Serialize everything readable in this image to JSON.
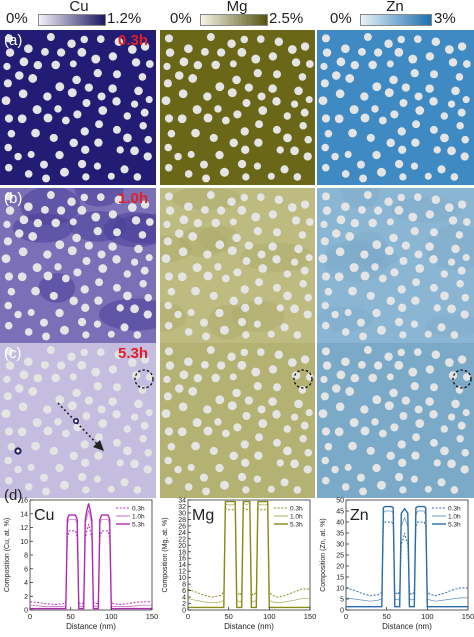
{
  "colorbars": [
    {
      "element": "Cu",
      "min_label": "0%",
      "max_label": "1.2%",
      "color_low": "#f4f2fb",
      "color_high": "#1c1760"
    },
    {
      "element": "Mg",
      "min_label": "0%",
      "max_label": "2.5%",
      "color_low": "#f6f5e6",
      "color_high": "#55530f"
    },
    {
      "element": "Zn",
      "min_label": "0%",
      "max_label": "3%",
      "color_low": "#e8f1f8",
      "color_high": "#1b6fae"
    }
  ],
  "panel_labels": [
    "(a)",
    "(b)",
    "(c)",
    "(d)"
  ],
  "time_labels": [
    "0.3h",
    "1.0h",
    "5.3h"
  ],
  "map_colors": {
    "cu": [
      "#221c74",
      "#7b6fb8",
      "#c4bde0"
    ],
    "mg": [
      "#6a6818",
      "#bdbb80",
      "#b4b272"
    ],
    "zn": [
      "#3f8ac2",
      "#8ab6d3",
      "#7ba9c8"
    ],
    "particle": "#e4e4e4"
  },
  "chart_data": [
    {
      "type": "line",
      "element_label": "Cu",
      "xlabel": "Distance (nm)",
      "ylabel": "Composition (Cu, at. %)",
      "xlim": [
        0,
        150
      ],
      "ylim": [
        0,
        16
      ],
      "xticks": [
        0,
        50,
        100,
        150
      ],
      "yticks": [
        0,
        2,
        4,
        6,
        8,
        10,
        12,
        14,
        16
      ],
      "color": "#b12ab4",
      "series": [
        {
          "name": "0.3h",
          "style": "dotted",
          "x": [
            0,
            10,
            20,
            30,
            40,
            44,
            46,
            48,
            56,
            58,
            60,
            64,
            66,
            68,
            70,
            72,
            74,
            76,
            78,
            80,
            84,
            86,
            88,
            96,
            98,
            100,
            104,
            110,
            120,
            130,
            140,
            150
          ],
          "y": [
            1.2,
            1.1,
            0.9,
            0.8,
            0.9,
            1.0,
            10.5,
            11.5,
            11.5,
            10.5,
            1.0,
            0.9,
            1.2,
            10.5,
            11.5,
            12.5,
            11.5,
            10.5,
            1.2,
            0.9,
            1.0,
            10.5,
            11.5,
            11.5,
            10.5,
            1.0,
            0.9,
            0.8,
            0.9,
            1.1,
            1.2,
            1.2
          ]
        },
        {
          "name": "1.0h",
          "style": "thin",
          "x": [
            0,
            10,
            20,
            30,
            40,
            44,
            46,
            48,
            56,
            58,
            60,
            64,
            66,
            68,
            70,
            72,
            74,
            76,
            78,
            80,
            84,
            86,
            88,
            96,
            98,
            100,
            104,
            110,
            120,
            130,
            140,
            150
          ],
          "y": [
            0.7,
            0.6,
            0.5,
            0.5,
            0.5,
            0.6,
            12.5,
            13.2,
            13.2,
            12.5,
            0.6,
            0.5,
            0.8,
            12.5,
            13.5,
            14.5,
            13.5,
            12.5,
            0.8,
            0.5,
            0.6,
            12.5,
            13.2,
            13.2,
            12.5,
            0.6,
            0.5,
            0.5,
            0.5,
            0.6,
            0.7,
            0.7
          ]
        },
        {
          "name": "5.3h",
          "style": "thick",
          "x": [
            0,
            10,
            20,
            30,
            40,
            44,
            46,
            48,
            56,
            58,
            60,
            64,
            66,
            68,
            70,
            72,
            74,
            76,
            78,
            80,
            84,
            86,
            88,
            96,
            98,
            100,
            104,
            110,
            120,
            130,
            140,
            150
          ],
          "y": [
            0.2,
            0.2,
            0.2,
            0.2,
            0.2,
            0.2,
            13.2,
            13.8,
            13.8,
            13.2,
            0.2,
            0.2,
            0.2,
            13.2,
            14.5,
            15.5,
            14.5,
            13.2,
            0.2,
            0.2,
            0.2,
            13.2,
            13.8,
            13.8,
            13.2,
            0.2,
            0.2,
            0.2,
            0.2,
            0.2,
            0.2,
            0.2
          ]
        }
      ]
    },
    {
      "type": "line",
      "element_label": "Mg",
      "xlabel": "Distance (nm)",
      "ylabel": "Composition (Mg, at. %)",
      "xlim": [
        0,
        150
      ],
      "ylim": [
        0,
        34
      ],
      "xticks": [
        0,
        50,
        100,
        150
      ],
      "yticks": [
        0,
        2,
        4,
        6,
        8,
        10,
        12,
        14,
        16,
        18,
        20,
        22,
        24,
        26,
        28,
        30,
        32,
        34
      ],
      "color": "#8a8a16",
      "series": [
        {
          "name": "0.3h",
          "style": "dotted",
          "x": [
            0,
            10,
            20,
            30,
            40,
            44,
            46,
            48,
            56,
            58,
            60,
            64,
            66,
            68,
            72,
            76,
            78,
            80,
            84,
            86,
            88,
            96,
            98,
            100,
            104,
            110,
            120,
            130,
            140,
            150
          ],
          "y": [
            6.5,
            5.5,
            4.5,
            4.0,
            4.5,
            5.5,
            31.5,
            31.0,
            31.0,
            31.5,
            5.5,
            4.5,
            5.5,
            31.5,
            31.0,
            31.5,
            5.5,
            4.5,
            5.5,
            31.5,
            31.0,
            31.0,
            31.5,
            5.5,
            4.5,
            4.0,
            4.5,
            5.5,
            6.5,
            6.5
          ]
        },
        {
          "name": "1.0h",
          "style": "thin",
          "x": [
            0,
            10,
            20,
            30,
            40,
            44,
            46,
            48,
            56,
            58,
            60,
            64,
            66,
            68,
            72,
            76,
            78,
            80,
            84,
            86,
            88,
            96,
            98,
            100,
            104,
            110,
            120,
            130,
            140,
            150
          ],
          "y": [
            3.5,
            3.0,
            2.5,
            2.2,
            2.5,
            3.0,
            33.0,
            32.5,
            32.5,
            33.0,
            3.0,
            2.5,
            3.0,
            33.0,
            32.5,
            33.0,
            3.0,
            2.5,
            3.0,
            33.0,
            32.5,
            32.5,
            33.0,
            3.0,
            2.5,
            2.2,
            2.5,
            3.0,
            3.5,
            3.5
          ]
        },
        {
          "name": "5.3h",
          "style": "thick",
          "x": [
            0,
            10,
            20,
            30,
            40,
            44,
            46,
            48,
            56,
            58,
            60,
            64,
            66,
            68,
            72,
            76,
            78,
            80,
            84,
            86,
            88,
            96,
            98,
            100,
            104,
            110,
            120,
            130,
            140,
            150
          ],
          "y": [
            0.8,
            0.8,
            0.8,
            0.8,
            0.8,
            0.8,
            33.5,
            33.5,
            33.5,
            33.5,
            0.8,
            0.8,
            0.8,
            33.5,
            33.5,
            33.5,
            0.8,
            0.8,
            0.8,
            33.5,
            33.5,
            33.5,
            33.5,
            0.8,
            0.8,
            0.8,
            0.8,
            0.8,
            0.8,
            0.8
          ]
        }
      ]
    },
    {
      "type": "line",
      "element_label": "Zn",
      "xlabel": "Distance (nm)",
      "ylabel": "Composition (Zn, at. %)",
      "xlim": [
        0,
        150
      ],
      "ylim": [
        0,
        50
      ],
      "xticks": [
        0,
        50,
        100,
        150
      ],
      "yticks": [
        0,
        5,
        10,
        15,
        20,
        25,
        30,
        35,
        40,
        45,
        50
      ],
      "color": "#2a6ba8",
      "series": [
        {
          "name": "0.3h",
          "style": "dotted",
          "x": [
            0,
            10,
            20,
            30,
            40,
            44,
            46,
            48,
            56,
            58,
            60,
            64,
            66,
            68,
            70,
            72,
            74,
            76,
            78,
            80,
            84,
            86,
            88,
            96,
            98,
            100,
            104,
            110,
            120,
            130,
            140,
            150
          ],
          "y": [
            10.0,
            9.0,
            7.5,
            6.5,
            7.0,
            8.0,
            39.0,
            40.0,
            40.0,
            39.0,
            8.0,
            7.0,
            9.0,
            30.0,
            32.0,
            35.0,
            32.0,
            30.0,
            9.0,
            7.0,
            8.0,
            38.0,
            40.0,
            40.0,
            38.0,
            8.0,
            7.0,
            6.5,
            7.5,
            9.0,
            10.0,
            10.0
          ]
        },
        {
          "name": "1.0h",
          "style": "thin",
          "x": [
            0,
            10,
            20,
            30,
            40,
            44,
            46,
            48,
            56,
            58,
            60,
            64,
            66,
            68,
            70,
            72,
            74,
            76,
            78,
            80,
            84,
            86,
            88,
            96,
            98,
            100,
            104,
            110,
            120,
            130,
            140,
            150
          ],
          "y": [
            5.5,
            5.0,
            4.5,
            4.0,
            4.5,
            5.0,
            44.0,
            45.0,
            45.0,
            44.0,
            5.0,
            4.5,
            5.5,
            38.0,
            40.0,
            42.0,
            40.0,
            38.0,
            5.5,
            4.5,
            5.0,
            43.0,
            45.0,
            45.0,
            43.0,
            5.0,
            4.5,
            4.0,
            4.5,
            5.0,
            5.5,
            5.5
          ]
        },
        {
          "name": "5.3h",
          "style": "thick",
          "x": [
            0,
            10,
            20,
            30,
            40,
            44,
            46,
            48,
            56,
            58,
            60,
            64,
            66,
            68,
            70,
            72,
            74,
            76,
            78,
            80,
            84,
            86,
            88,
            96,
            98,
            100,
            104,
            110,
            120,
            130,
            140,
            150
          ],
          "y": [
            1.5,
            1.5,
            1.5,
            1.5,
            1.5,
            1.5,
            46.5,
            47.0,
            47.0,
            46.5,
            1.5,
            1.5,
            1.5,
            44.0,
            45.0,
            46.0,
            45.0,
            44.0,
            1.5,
            1.5,
            1.5,
            46.5,
            47.0,
            47.0,
            46.5,
            1.5,
            1.5,
            1.5,
            1.5,
            1.5,
            1.5,
            1.5
          ]
        }
      ]
    }
  ]
}
